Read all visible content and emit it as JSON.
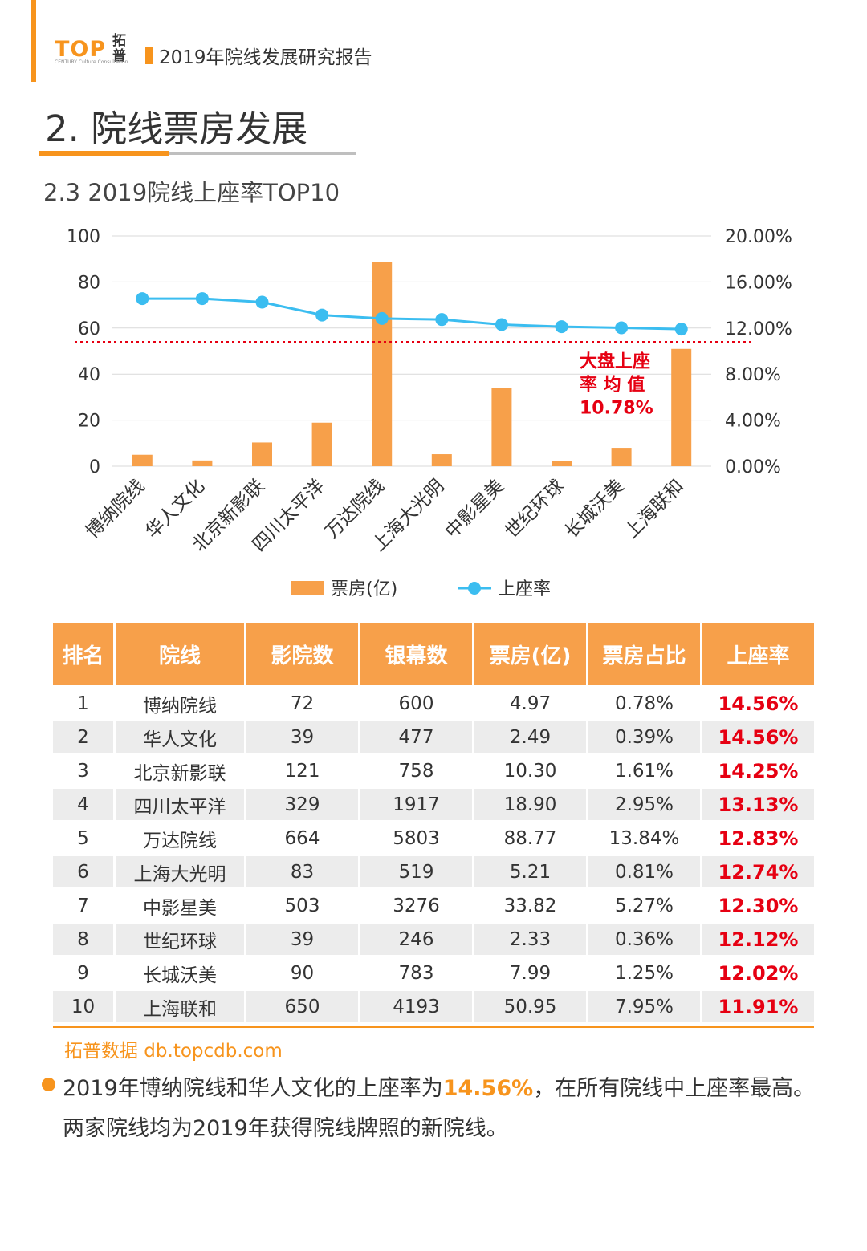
{
  "header": {
    "logo_text": "TOP",
    "logo_cn": "拓普",
    "logo_small": "CENTURY Culture Consultation",
    "report_title": "2019年院线发展研究报告"
  },
  "section": {
    "title": "2. 院线票房发展",
    "subtitle": "2.3 2019院线上座率TOP10"
  },
  "colors": {
    "accent": "#f7941d",
    "bar": "#f7a04a",
    "line": "#3bbdf0",
    "highlight_red": "#e60012"
  },
  "chart_data": {
    "type": "bar",
    "categories": [
      "博纳院线",
      "华人文化",
      "北京新影联",
      "四川太平洋",
      "万达院线",
      "上海大光明",
      "中影星美",
      "世纪环球",
      "长城沃美",
      "上海联和"
    ],
    "series": [
      {
        "name": "票房(亿)",
        "type": "bar",
        "axis": "left",
        "values": [
          4.97,
          2.49,
          10.3,
          18.9,
          88.77,
          5.21,
          33.82,
          2.33,
          7.99,
          50.95
        ]
      },
      {
        "name": "上座率",
        "type": "line",
        "axis": "right",
        "values": [
          14.56,
          14.56,
          14.25,
          13.13,
          12.83,
          12.74,
          12.3,
          12.12,
          12.02,
          11.91
        ]
      }
    ],
    "ylim_left": [
      0,
      100
    ],
    "yticks_left": [
      "100",
      "80",
      "60",
      "40",
      "20",
      "0"
    ],
    "ylim_right": [
      0,
      20
    ],
    "yticks_right": [
      "20.00%",
      "16.00%",
      "12.00%",
      "8.00%",
      "4.00%",
      "0.00%"
    ],
    "reference_line": {
      "value": 10.78,
      "axis": "right",
      "label_lines": [
        "大盘上座",
        "率 均 值",
        "10.78%"
      ]
    },
    "legend_position": "bottom",
    "grid": true
  },
  "table": {
    "headers": [
      "排名",
      "院线",
      "影院数",
      "银幕数",
      "票房(亿)",
      "票房占比",
      "上座率"
    ],
    "rows": [
      [
        "1",
        "博纳院线",
        "72",
        "600",
        "4.97",
        "0.78%",
        "14.56%"
      ],
      [
        "2",
        "华人文化",
        "39",
        "477",
        "2.49",
        "0.39%",
        "14.56%"
      ],
      [
        "3",
        "北京新影联",
        "121",
        "758",
        "10.30",
        "1.61%",
        "14.25%"
      ],
      [
        "4",
        "四川太平洋",
        "329",
        "1917",
        "18.90",
        "2.95%",
        "13.13%"
      ],
      [
        "5",
        "万达院线",
        "664",
        "5803",
        "88.77",
        "13.84%",
        "12.83%"
      ],
      [
        "6",
        "上海大光明",
        "83",
        "519",
        "5.21",
        "0.81%",
        "12.74%"
      ],
      [
        "7",
        "中影星美",
        "503",
        "3276",
        "33.82",
        "5.27%",
        "12.30%"
      ],
      [
        "8",
        "世纪环球",
        "39",
        "246",
        "2.33",
        "0.36%",
        "12.12%"
      ],
      [
        "9",
        "长城沃美",
        "90",
        "783",
        "7.99",
        "1.25%",
        "12.02%"
      ],
      [
        "10",
        "上海联和",
        "650",
        "4193",
        "50.95",
        "7.95%",
        "11.91%"
      ]
    ]
  },
  "source": "拓普数据  db.topcdb.com",
  "conclusion": {
    "part1": "2019年博纳院线和华人文化的上座率为",
    "highlight": "14.56%",
    "part2": "，在所有院线中上座率最高。两家院线均为2019年获得院线牌照的新院线。"
  }
}
